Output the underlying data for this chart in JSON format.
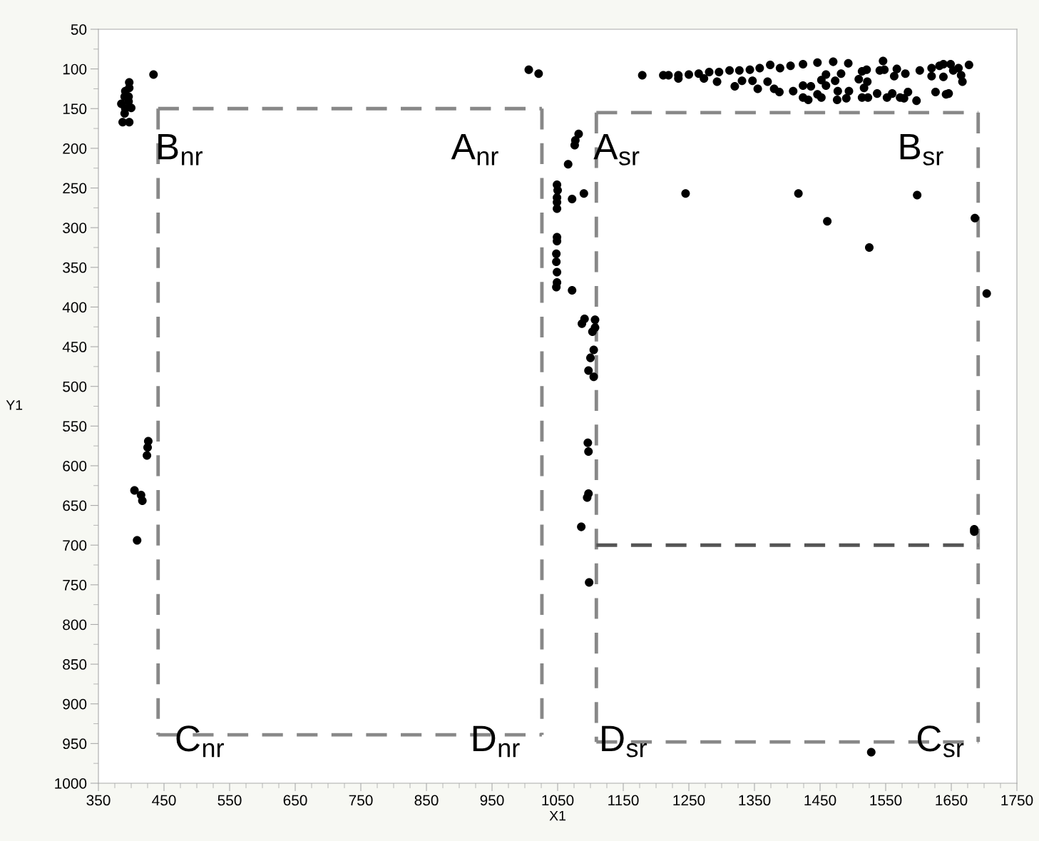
{
  "chart_data": {
    "type": "scatter",
    "xlabel": "X1",
    "ylabel": "Y1",
    "xlim": [
      350,
      1750
    ],
    "ylim": [
      1000,
      50
    ],
    "xticks": [
      350,
      450,
      550,
      650,
      750,
      850,
      950,
      1050,
      1150,
      1250,
      1350,
      1450,
      1550,
      1650,
      1750
    ],
    "yticks": [
      50,
      100,
      150,
      200,
      250,
      300,
      350,
      400,
      450,
      500,
      550,
      600,
      650,
      700,
      750,
      800,
      850,
      900,
      950,
      1000
    ],
    "grid": false,
    "series": [
      {
        "color": "#000000",
        "marker": "circle",
        "x": [
          397,
          397,
          391,
          390,
          396,
          385,
          396,
          391,
          400,
          390,
          387,
          397,
          434,
          426,
          425,
          424,
          405,
          415,
          417,
          409,
          1006,
          1021,
          1082,
          1077,
          1076,
          1066,
          1049,
          1050,
          1049,
          1049,
          1049,
          1072,
          1090,
          1049,
          1049,
          1048,
          1048,
          1049,
          1049,
          1048,
          1072,
          1091,
          1087,
          1107,
          1107,
          1103,
          1105,
          1100,
          1097,
          1105,
          1096,
          1097,
          1097,
          1095,
          1086,
          1098,
          1179,
          1211,
          1219,
          1234,
          1250,
          1265,
          1281,
          1296,
          1312,
          1327,
          1343,
          1358,
          1374,
          1389,
          1405,
          1424,
          1446,
          1470,
          1493,
          1546,
          1677,
          1649,
          1632,
          1620,
          1234,
          1273,
          1293,
          1320,
          1331,
          1355,
          1347,
          1370,
          1380,
          1388,
          1409,
          1424,
          1436,
          1424,
          1432,
          1446,
          1452,
          1459,
          1452,
          1459,
          1473,
          1482,
          1477,
          1476,
          1490,
          1494,
          1509,
          1514,
          1521,
          1522,
          1517,
          1514,
          1523,
          1541,
          1537,
          1548,
          1560,
          1563,
          1567,
          1552,
          1572,
          1580,
          1584,
          1578,
          1597,
          1602,
          1620,
          1626,
          1638,
          1642,
          1646,
          1653,
          1661,
          1665,
          1667,
          1638,
          1245,
          1417,
          1461,
          1525,
          1598,
          1686,
          1704,
          1685,
          1685,
          1528
        ],
        "values": [
          117,
          124,
          128,
          135,
          135,
          144,
          141,
          150,
          149,
          156,
          167,
          167,
          107,
          569,
          577,
          587,
          631,
          637,
          644,
          694,
          101,
          106,
          182,
          190,
          196,
          220,
          246,
          253,
          262,
          268,
          276,
          264,
          257,
          312,
          317,
          333,
          343,
          356,
          369,
          375,
          379,
          415,
          421,
          416,
          426,
          431,
          454,
          464,
          480,
          488,
          571,
          582,
          635,
          640,
          677,
          747,
          108,
          108,
          108,
          108,
          107,
          106,
          104,
          104,
          102,
          102,
          101,
          99,
          95,
          99,
          96,
          94,
          92,
          91,
          93,
          90,
          95,
          94,
          96,
          99,
          112,
          112,
          116,
          122,
          115,
          125,
          115,
          116,
          125,
          129,
          128,
          121,
          122,
          136,
          139,
          132,
          136,
          107,
          114,
          121,
          115,
          106,
          128,
          139,
          137,
          128,
          113,
          103,
          101,
          116,
          124,
          136,
          136,
          102,
          131,
          101,
          131,
          109,
          100,
          136,
          136,
          106,
          129,
          137,
          140,
          102,
          109,
          129,
          110,
          132,
          131,
          102,
          99,
          108,
          116,
          94,
          257,
          257,
          292,
          325,
          259,
          288,
          383,
          680,
          683,
          961
        ]
      },
      {
        "type": "line",
        "color": "#888888",
        "line_style": "dashed",
        "marker": "none",
        "x": [
          441,
          1026
        ],
        "values": [
          150,
          150
        ]
      },
      {
        "type": "line",
        "color": "#888888",
        "line_style": "dashed",
        "marker": "none",
        "x": [
          441,
          441
        ],
        "values": [
          150,
          939
        ]
      },
      {
        "type": "line",
        "color": "#888888",
        "line_style": "dashed",
        "marker": "none",
        "x": [
          441,
          1026
        ],
        "values": [
          939,
          939
        ]
      },
      {
        "type": "line",
        "color": "#888888",
        "line_style": "dashed",
        "marker": "none",
        "x": [
          1026,
          1026
        ],
        "values": [
          150,
          939
        ]
      },
      {
        "type": "line",
        "color": "#888888",
        "line_style": "dashed",
        "marker": "none",
        "x": [
          1109,
          1691
        ],
        "values": [
          155,
          155
        ]
      },
      {
        "type": "line",
        "color": "#888888",
        "line_style": "dashed",
        "marker": "none",
        "x": [
          1109,
          1109
        ],
        "values": [
          155,
          948
        ]
      },
      {
        "type": "line",
        "color": "#888888",
        "line_style": "dashed",
        "marker": "none",
        "x": [
          1109,
          1691
        ],
        "values": [
          948,
          948
        ]
      },
      {
        "type": "line",
        "color": "#888888",
        "line_style": "dashed",
        "marker": "none",
        "x": [
          1691,
          1691
        ],
        "values": [
          155,
          948
        ]
      },
      {
        "type": "line",
        "color": "#555555",
        "line_style": "dashed",
        "marker": "none",
        "x": [
          1109,
          1691
        ],
        "values": [
          700,
          700
        ]
      }
    ],
    "annotations": [
      "B$_{nr}$",
      "A$_{nr}$",
      "A$_{sr}$",
      "B$_{sr}$",
      "C$_{nr}$",
      "D$_{nr}$",
      "D$_{sr}$",
      "C$_{sr}$"
    ]
  }
}
